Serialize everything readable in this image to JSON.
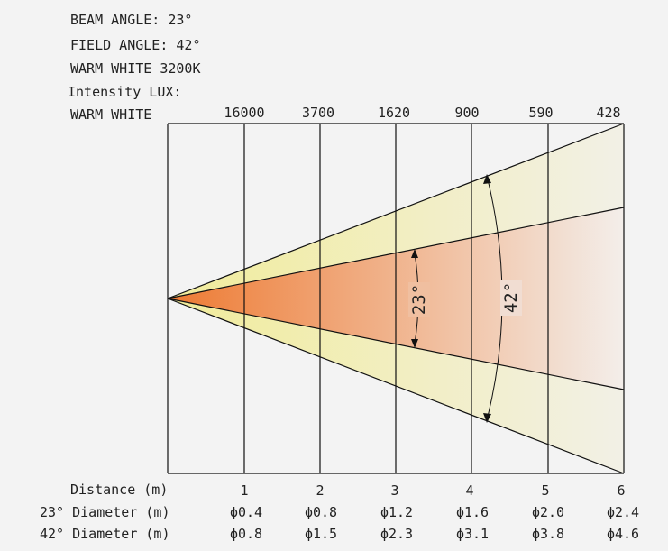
{
  "header": {
    "beam_angle": "BEAM ANGLE: 23°",
    "field_angle": "FIELD ANGLE: 42°",
    "color_temp": "WARM WHITE 3200K",
    "intensity_label": "Intensity LUX:",
    "row_label": "WARM WHITE"
  },
  "colors": {
    "background": "#f3f3f3",
    "field_fill": "#f1ec9a",
    "beam_start": "#ee7a32",
    "beam_end": "#f3eeea",
    "line": "#111111"
  },
  "chart_data": {
    "type": "beam-diagram",
    "beam_angle_label": "23°",
    "field_angle_label": "42°",
    "lux_values": [
      "16000",
      "3700",
      "1620",
      "900",
      "590",
      "428"
    ],
    "distances": [
      "1",
      "2",
      "3",
      "4",
      "5",
      "6"
    ],
    "rows": {
      "distance_label": "Distance (m)",
      "d23_label": "23° Diameter (m)",
      "d42_label": "42° Diameter (m)"
    },
    "diameter_23": [
      "ϕ0.4",
      "ϕ0.8",
      "ϕ1.2",
      "ϕ1.6",
      "ϕ2.0",
      "ϕ2.4"
    ],
    "diameter_42": [
      "ϕ0.8",
      "ϕ1.5",
      "ϕ2.3",
      "ϕ3.1",
      "ϕ3.8",
      "ϕ4.6"
    ]
  }
}
